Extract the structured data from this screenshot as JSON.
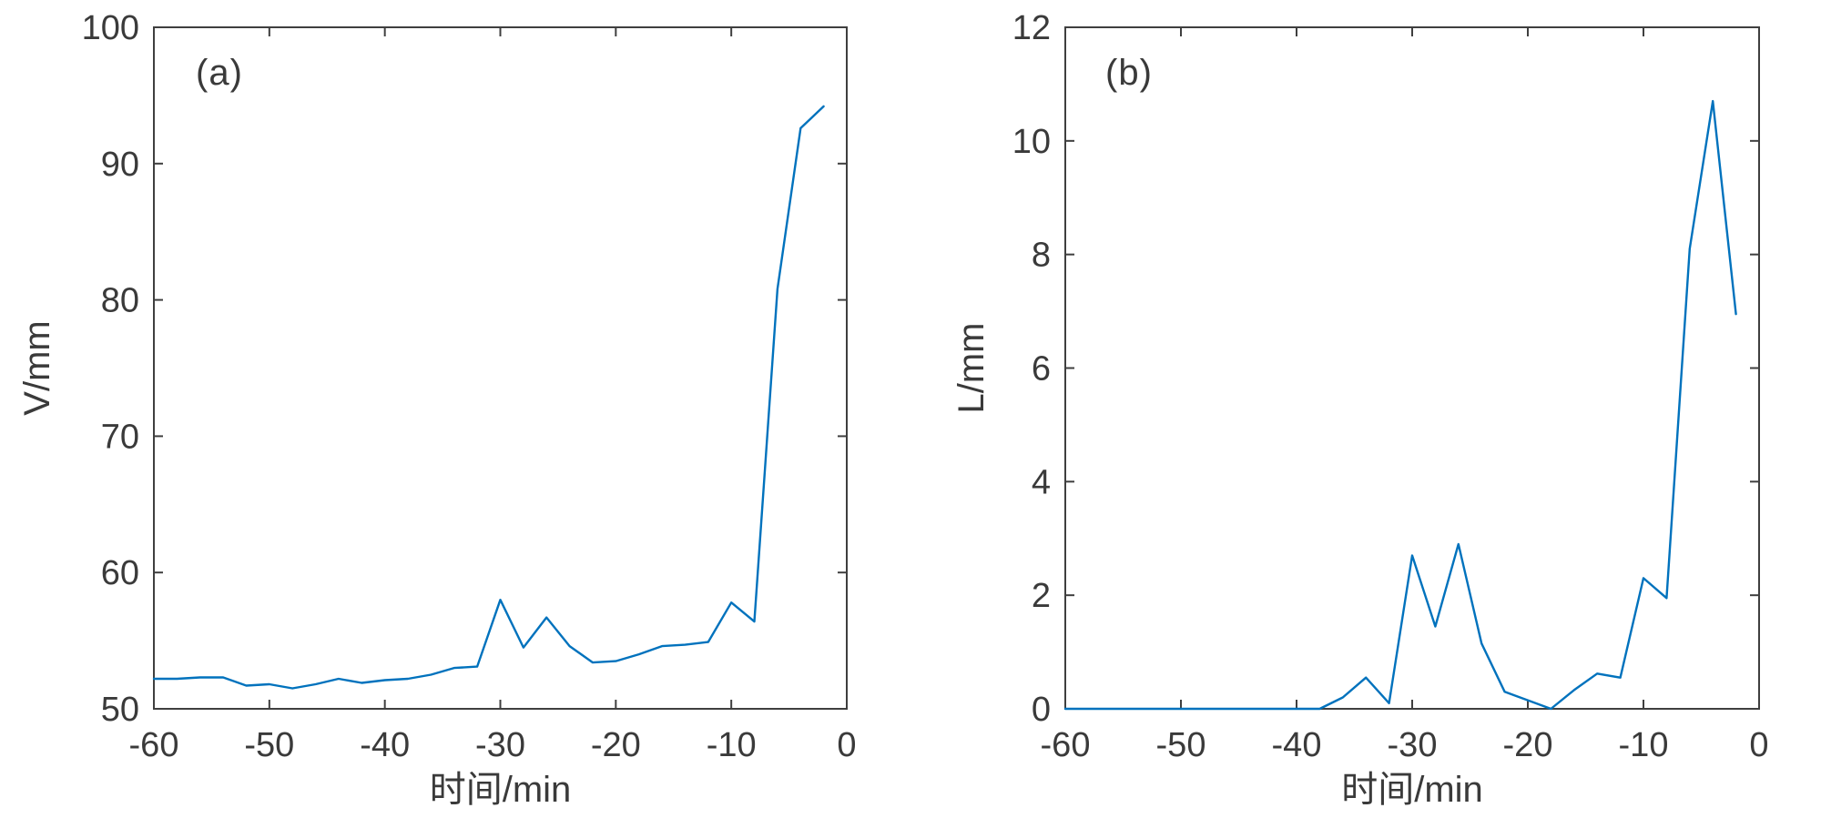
{
  "figure": {
    "background": "#ffffff",
    "axis_color": "#3f3f3f",
    "text_color": "#3a3a3a",
    "tick_font_size": 38,
    "label_font_size": 40
  },
  "chart_data": [
    {
      "type": "line",
      "panel_label": "(a)",
      "xlabel": "时间/min",
      "ylabel": "V/mm",
      "xlim": [
        -60,
        0
      ],
      "ylim": [
        50,
        100
      ],
      "xticks": [
        -60,
        -50,
        -40,
        -30,
        -20,
        -10,
        0
      ],
      "yticks": [
        50,
        60,
        70,
        80,
        90,
        100
      ],
      "grid": false,
      "legend": null,
      "line_color": "#0072bd",
      "x": [
        -60,
        -58,
        -56,
        -54,
        -52,
        -50,
        -48,
        -46,
        -44,
        -42,
        -40,
        -38,
        -36,
        -34,
        -32,
        -30,
        -28,
        -26,
        -24,
        -22,
        -20,
        -18,
        -16,
        -14,
        -12,
        -10,
        -8,
        -6,
        -4,
        -2
      ],
      "y": [
        52.2,
        52.2,
        52.3,
        52.3,
        51.7,
        51.8,
        51.5,
        51.8,
        52.2,
        51.9,
        52.1,
        52.2,
        52.5,
        53.0,
        53.1,
        58.0,
        54.5,
        56.7,
        54.6,
        53.4,
        53.5,
        54.0,
        54.6,
        54.7,
        54.9,
        57.8,
        56.4,
        80.8,
        92.6,
        94.2
      ]
    },
    {
      "type": "line",
      "panel_label": "(b)",
      "xlabel": "时间/min",
      "ylabel": "L/mm",
      "xlim": [
        -60,
        0
      ],
      "ylim": [
        0,
        12
      ],
      "xticks": [
        -60,
        -50,
        -40,
        -30,
        -20,
        -10,
        0
      ],
      "yticks": [
        0,
        2,
        4,
        6,
        8,
        10,
        12
      ],
      "grid": false,
      "legend": null,
      "line_color": "#0072bd",
      "x": [
        -60,
        -58,
        -56,
        -54,
        -52,
        -50,
        -48,
        -46,
        -44,
        -42,
        -40,
        -38,
        -36,
        -34,
        -32,
        -30,
        -28,
        -26,
        -24,
        -22,
        -20,
        -18,
        -16,
        -14,
        -12,
        -10,
        -8,
        -6,
        -4,
        -2
      ],
      "y": [
        0,
        0,
        0,
        0,
        0,
        0,
        0,
        0,
        0,
        0,
        0,
        0,
        0.2,
        0.55,
        0.1,
        2.7,
        1.45,
        2.9,
        1.15,
        0.3,
        0.15,
        0,
        0.33,
        0.62,
        0.55,
        2.3,
        1.95,
        8.1,
        10.7,
        6.95
      ]
    }
  ]
}
